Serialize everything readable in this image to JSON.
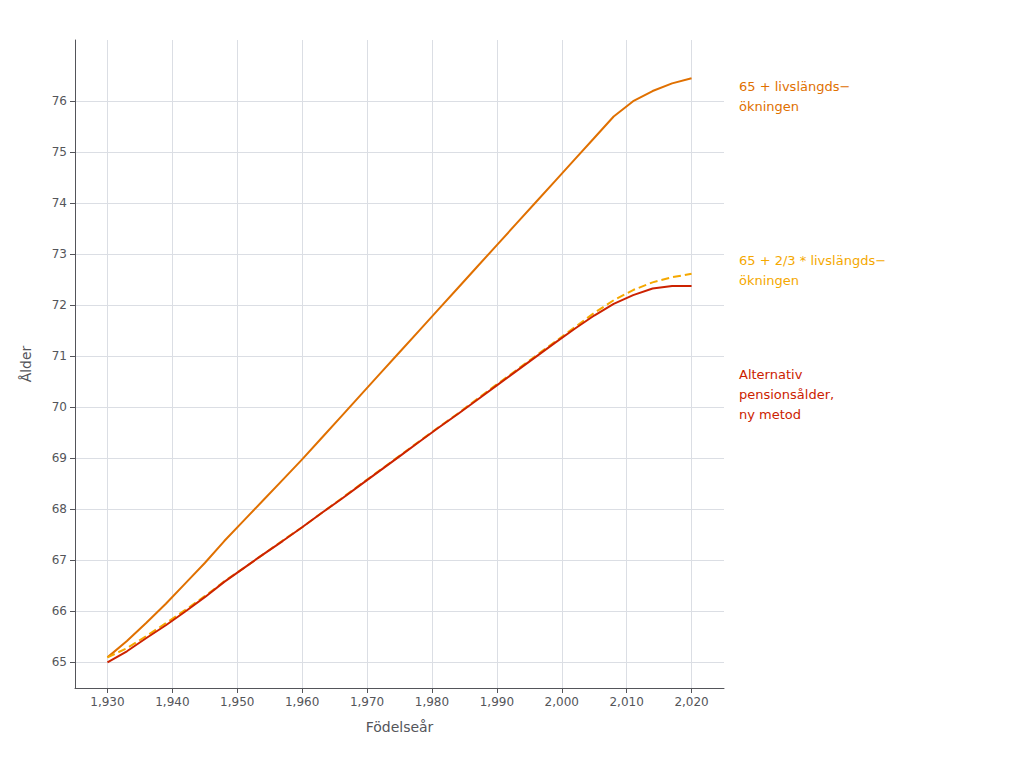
{
  "chart_data": {
    "type": "line",
    "xlabel": "Födelseår",
    "ylabel": "Ålder",
    "xlim": [
      1925,
      2025
    ],
    "ylim": [
      64.5,
      77.2
    ],
    "xticks": [
      1930,
      1940,
      1950,
      1960,
      1970,
      1980,
      1990,
      2000,
      2010,
      2020
    ],
    "yticks": [
      65,
      66,
      67,
      68,
      69,
      70,
      71,
      72,
      73,
      74,
      75,
      76
    ],
    "grid": true,
    "x": [
      1930,
      1933,
      1936,
      1939,
      1942,
      1945,
      1948,
      1951,
      1954,
      1957,
      1960,
      1963,
      1966,
      1969,
      1972,
      1975,
      1978,
      1981,
      1984,
      1987,
      1990,
      1993,
      1996,
      1999,
      2002,
      2005,
      2008,
      2011,
      2014,
      2017,
      2020
    ],
    "series": [
      {
        "name": "65 + livslängds−\nökningen",
        "color": "#E07000",
        "line_style": "solid",
        "values": [
          65.1,
          65.42,
          65.78,
          66.15,
          66.55,
          66.95,
          67.38,
          67.78,
          68.18,
          68.58,
          68.98,
          69.4,
          69.82,
          70.24,
          70.66,
          71.08,
          71.5,
          71.92,
          72.34,
          72.76,
          73.18,
          73.6,
          74.02,
          74.44,
          74.86,
          75.28,
          75.7,
          76.0,
          76.2,
          76.35,
          76.45
        ]
      },
      {
        "name": "65 + 2/3 * livslängds−\nökningen",
        "color": "#F5A800",
        "line_style": "dashed",
        "values": [
          65.1,
          65.28,
          65.52,
          65.77,
          66.03,
          66.3,
          66.59,
          66.85,
          67.12,
          67.39,
          67.65,
          67.93,
          68.21,
          68.49,
          68.77,
          69.05,
          69.33,
          69.61,
          69.88,
          70.17,
          70.45,
          70.73,
          71.01,
          71.29,
          71.57,
          71.85,
          72.1,
          72.3,
          72.45,
          72.55,
          72.62
        ]
      },
      {
        "name": "Alternativ\npensionsålder,\nny metod",
        "color": "#CC2200",
        "line_style": "solid",
        "values": [
          65.0,
          65.22,
          65.48,
          65.73,
          66.0,
          66.28,
          66.58,
          66.85,
          67.12,
          67.38,
          67.65,
          67.93,
          68.2,
          68.48,
          68.76,
          69.04,
          69.32,
          69.6,
          69.87,
          70.15,
          70.43,
          70.71,
          70.99,
          71.27,
          71.54,
          71.8,
          72.03,
          72.2,
          72.33,
          72.38,
          72.38
        ]
      }
    ]
  }
}
